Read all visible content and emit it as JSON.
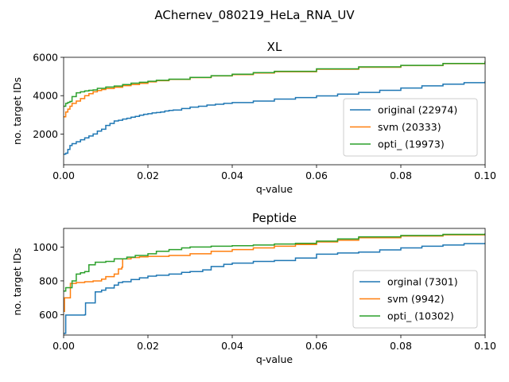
{
  "suptitle": "AChernev_080219_HeLa_RNA_UV",
  "colors": {
    "c0": "#1f77b4",
    "c1": "#ff7f0e",
    "c2": "#2ca02c",
    "axis": "#000000",
    "legend_border": "#cccccc"
  },
  "chart_data": [
    {
      "type": "line",
      "title": "XL",
      "xlabel": "q-value",
      "ylabel": "no. target IDs",
      "xlim": [
        0,
        0.1
      ],
      "ylim": [
        400,
        6000
      ],
      "xticks": [
        0.0,
        0.02,
        0.04,
        0.06,
        0.08,
        0.1
      ],
      "xtick_labels": [
        "0.00",
        "0.02",
        "0.04",
        "0.06",
        "0.08",
        "0.10"
      ],
      "yticks": [
        2000,
        4000,
        6000
      ],
      "ytick_labels": [
        "2000",
        "4000",
        "6000"
      ],
      "grid": false,
      "legend_position": "lower-right",
      "series": [
        {
          "name": "original (22974)",
          "color": "#1f77b4",
          "x": [
            0,
            0.0005,
            0.001,
            0.0015,
            0.002,
            0.003,
            0.004,
            0.005,
            0.006,
            0.007,
            0.008,
            0.009,
            0.01,
            0.011,
            0.012,
            0.013,
            0.014,
            0.015,
            0.016,
            0.017,
            0.018,
            0.019,
            0.02,
            0.021,
            0.022,
            0.023,
            0.024,
            0.025,
            0.026,
            0.028,
            0.03,
            0.032,
            0.034,
            0.036,
            0.038,
            0.04,
            0.045,
            0.05,
            0.055,
            0.06,
            0.065,
            0.07,
            0.075,
            0.08,
            0.085,
            0.09,
            0.095,
            0.1
          ],
          "y": [
            950,
            1000,
            1200,
            1400,
            1500,
            1600,
            1700,
            1800,
            1900,
            2000,
            2150,
            2250,
            2450,
            2550,
            2680,
            2720,
            2780,
            2820,
            2880,
            2920,
            2980,
            3030,
            3060,
            3100,
            3120,
            3150,
            3200,
            3230,
            3250,
            3330,
            3400,
            3450,
            3510,
            3550,
            3600,
            3640,
            3720,
            3820,
            3900,
            3990,
            4080,
            4170,
            4280,
            4400,
            4510,
            4600,
            4680,
            4750
          ]
        },
        {
          "name": "svm (20333)",
          "color": "#ff7f0e",
          "x": [
            0,
            0.0005,
            0.001,
            0.0015,
            0.002,
            0.003,
            0.004,
            0.005,
            0.006,
            0.007,
            0.008,
            0.009,
            0.01,
            0.012,
            0.014,
            0.016,
            0.018,
            0.02,
            0.022,
            0.025,
            0.03,
            0.035,
            0.04,
            0.045,
            0.05,
            0.06,
            0.07,
            0.08,
            0.09,
            0.1
          ],
          "y": [
            2900,
            3150,
            3300,
            3450,
            3600,
            3720,
            3850,
            4000,
            4100,
            4200,
            4270,
            4320,
            4370,
            4440,
            4520,
            4580,
            4640,
            4720,
            4780,
            4850,
            4940,
            5030,
            5100,
            5180,
            5250,
            5380,
            5480,
            5570,
            5670,
            5800
          ]
        },
        {
          "name": "opti_ (19973)",
          "color": "#2ca02c",
          "x": [
            0,
            0.0005,
            0.001,
            0.0015,
            0.002,
            0.003,
            0.004,
            0.005,
            0.006,
            0.007,
            0.008,
            0.01,
            0.012,
            0.014,
            0.016,
            0.018,
            0.02,
            0.022,
            0.025,
            0.03,
            0.035,
            0.04,
            0.045,
            0.05,
            0.06,
            0.07,
            0.08,
            0.09,
            0.1
          ],
          "y": [
            3450,
            3600,
            3650,
            3700,
            3950,
            4150,
            4200,
            4250,
            4280,
            4300,
            4380,
            4450,
            4500,
            4580,
            4650,
            4700,
            4750,
            4800,
            4860,
            4950,
            5040,
            5120,
            5200,
            5270,
            5400,
            5500,
            5580,
            5680,
            5800
          ]
        }
      ]
    },
    {
      "type": "line",
      "title": "Peptide",
      "xlabel": "q-value",
      "ylabel": "no. target IDs",
      "xlim": [
        0,
        0.1
      ],
      "ylim": [
        480,
        1110
      ],
      "xticks": [
        0.0,
        0.02,
        0.04,
        0.06,
        0.08,
        0.1
      ],
      "xtick_labels": [
        "0.00",
        "0.02",
        "0.04",
        "0.06",
        "0.08",
        "0.10"
      ],
      "yticks": [
        600,
        800,
        1000
      ],
      "ytick_labels": [
        "600",
        "800",
        "1000"
      ],
      "grid": false,
      "legend_position": "lower-right",
      "series": [
        {
          "name": "orginal (7301)",
          "color": "#1f77b4",
          "x": [
            0,
            0.0005,
            0.005,
            0.0052,
            0.007,
            0.0075,
            0.009,
            0.01,
            0.012,
            0.013,
            0.014,
            0.016,
            0.018,
            0.02,
            0.022,
            0.025,
            0.028,
            0.03,
            0.033,
            0.035,
            0.038,
            0.04,
            0.045,
            0.05,
            0.055,
            0.06,
            0.065,
            0.07,
            0.075,
            0.08,
            0.085,
            0.09,
            0.095,
            0.1
          ],
          "y": [
            490,
            598,
            600,
            670,
            670,
            735,
            745,
            758,
            775,
            790,
            795,
            808,
            818,
            828,
            833,
            840,
            850,
            855,
            865,
            885,
            898,
            905,
            915,
            920,
            935,
            958,
            965,
            970,
            983,
            995,
            1005,
            1012,
            1020,
            1025
          ]
        },
        {
          "name": "svm (9942)",
          "color": "#ff7f0e",
          "x": [
            0,
            0.0002,
            0.0015,
            0.0016,
            0.003,
            0.005,
            0.007,
            0.009,
            0.01,
            0.012,
            0.013,
            0.0138,
            0.014,
            0.016,
            0.018,
            0.02,
            0.025,
            0.03,
            0.035,
            0.04,
            0.045,
            0.05,
            0.055,
            0.06,
            0.065,
            0.07,
            0.08,
            0.09,
            0.1
          ],
          "y": [
            620,
            700,
            700,
            785,
            790,
            795,
            800,
            810,
            825,
            840,
            870,
            880,
            930,
            938,
            942,
            945,
            950,
            960,
            975,
            985,
            995,
            1005,
            1015,
            1030,
            1040,
            1055,
            1065,
            1072,
            1080
          ]
        },
        {
          "name": "opti_ (10302)",
          "color": "#2ca02c",
          "x": [
            0,
            0.0005,
            0.002,
            0.003,
            0.004,
            0.005,
            0.006,
            0.0075,
            0.01,
            0.012,
            0.015,
            0.017,
            0.02,
            0.022,
            0.025,
            0.028,
            0.03,
            0.035,
            0.04,
            0.045,
            0.05,
            0.055,
            0.06,
            0.065,
            0.07,
            0.08,
            0.09,
            0.1
          ],
          "y": [
            740,
            760,
            800,
            840,
            848,
            855,
            895,
            910,
            915,
            930,
            940,
            950,
            960,
            975,
            985,
            995,
            1000,
            1005,
            1008,
            1012,
            1018,
            1022,
            1035,
            1048,
            1060,
            1068,
            1075,
            1080
          ]
        }
      ]
    }
  ]
}
